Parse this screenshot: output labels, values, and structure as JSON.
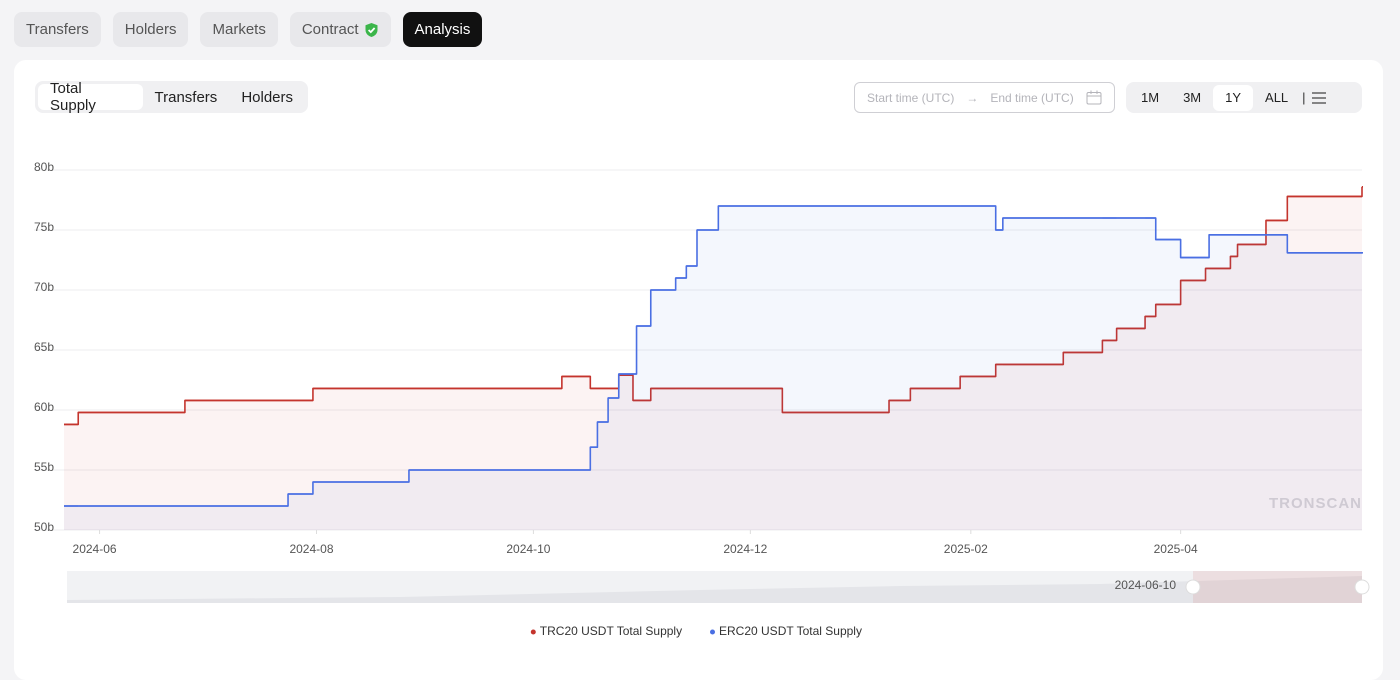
{
  "tabs": [
    "Transfers",
    "Holders",
    "Markets",
    "Contract",
    "Analysis"
  ],
  "subtabs": [
    "Total Supply",
    "Transfers",
    "Holders"
  ],
  "date_range": {
    "start_placeholder": "Start time (UTC)",
    "end_placeholder": "End time (UTC)"
  },
  "ranges": [
    "1M",
    "3M",
    "1Y",
    "ALL"
  ],
  "watermark": "TRONSCAN",
  "zoom_label": "2024-06-10",
  "chart_data": {
    "type": "line",
    "step": "after",
    "area": true,
    "grid": true,
    "legend": "bottom",
    "x": [
      "2024-05-22",
      "2024-05-26",
      "2024-06-25",
      "2024-07-24",
      "2024-07-31",
      "2024-08-27",
      "2024-10-09",
      "2024-10-17",
      "2024-10-19",
      "2024-10-22",
      "2024-10-25",
      "2024-10-29",
      "2024-10-30",
      "2024-11-03",
      "2024-11-10",
      "2024-11-13",
      "2024-11-16",
      "2024-11-22",
      "2024-12-10",
      "2025-01-09",
      "2025-01-15",
      "2025-01-29",
      "2025-02-08",
      "2025-02-10",
      "2025-02-27",
      "2025-03-10",
      "2025-03-14",
      "2025-03-22",
      "2025-03-25",
      "2025-04-01",
      "2025-04-08",
      "2025-04-09",
      "2025-04-15",
      "2025-04-17",
      "2025-04-25",
      "2025-05-01",
      "2025-05-22"
    ],
    "series": [
      {
        "name": "TRC20 USDT Total Supply",
        "color": "#c4342d",
        "values": [
          58.8,
          59.8,
          60.8,
          60.8,
          61.8,
          61.8,
          62.8,
          61.8,
          61.8,
          61.8,
          62.9,
          60.8,
          60.8,
          61.8,
          61.8,
          61.8,
          61.8,
          61.8,
          59.8,
          60.8,
          61.8,
          62.8,
          63.8,
          63.8,
          64.8,
          65.8,
          66.8,
          67.8,
          68.8,
          70.8,
          71.8,
          71.8,
          72.8,
          73.8,
          75.8,
          77.8,
          78.6
        ]
      },
      {
        "name": "ERC20 USDT Total Supply",
        "color": "#4a6fe3",
        "values": [
          52,
          52,
          52,
          53,
          54,
          55,
          55,
          56.9,
          59,
          61,
          63,
          63,
          67,
          70,
          71,
          72,
          75,
          77,
          77,
          77,
          77,
          77,
          75,
          76,
          76,
          76,
          76,
          76,
          74.2,
          72.7,
          72.7,
          74.6,
          74.6,
          74.6,
          74.6,
          73.1,
          73.1
        ]
      }
    ],
    "xlim": [
      "2024-05-22",
      "2025-05-22"
    ],
    "xticks": [
      {
        "value": "2024-06-01",
        "label": "2024-06"
      },
      {
        "value": "2024-08-01",
        "label": "2024-08"
      },
      {
        "value": "2024-10-01",
        "label": "2024-10"
      },
      {
        "value": "2024-12-01",
        "label": "2024-12"
      },
      {
        "value": "2025-02-01",
        "label": "2025-02"
      },
      {
        "value": "2025-04-01",
        "label": "2025-04"
      }
    ],
    "ylim": [
      50,
      80
    ],
    "yticks": [
      {
        "value": 50,
        "label": "50b"
      },
      {
        "value": 55,
        "label": "55b"
      },
      {
        "value": 60,
        "label": "60b"
      },
      {
        "value": 65,
        "label": "65b"
      },
      {
        "value": 70,
        "label": "70b"
      },
      {
        "value": 75,
        "label": "75b"
      },
      {
        "value": 80,
        "label": "80b"
      }
    ]
  }
}
